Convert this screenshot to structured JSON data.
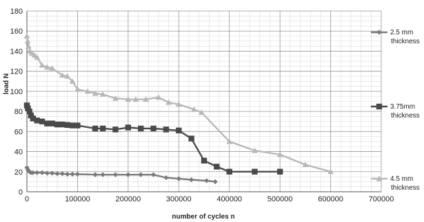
{
  "chart_data": {
    "type": "line",
    "title": "",
    "xlabel": "number of cycles n",
    "ylabel": "load N",
    "xlim": [
      0,
      700000
    ],
    "ylim": [
      0,
      180
    ],
    "x_ticks": [
      0,
      100000,
      200000,
      300000,
      400000,
      500000,
      600000,
      700000
    ],
    "y_ticks": [
      0,
      20,
      40,
      60,
      80,
      100,
      120,
      140,
      160,
      180
    ],
    "minor_x_step": 20000,
    "minor_y_step": 5,
    "grid": true,
    "legend_position": "right",
    "series": [
      {
        "name": "2.5 mm thickness",
        "label_lines": [
          "2.5 mm",
          "thickness"
        ],
        "marker": "diamond",
        "color": "#7a7a7a",
        "x": [
          0,
          2000,
          5000,
          8000,
          12000,
          20000,
          30000,
          40000,
          50000,
          60000,
          70000,
          80000,
          90000,
          100000,
          135000,
          150000,
          175000,
          200000,
          225000,
          250000,
          275000,
          300000,
          325000,
          355000,
          372000
        ],
        "y": [
          24,
          22,
          20,
          19,
          19,
          19,
          19,
          18.5,
          18.5,
          18,
          18,
          17.5,
          17.5,
          17.5,
          17,
          17,
          17,
          17,
          17,
          17,
          14,
          13,
          12,
          11,
          10
        ]
      },
      {
        "name": "3.75mm thickness",
        "label_lines": [
          "3.75mm",
          "thickness"
        ],
        "marker": "square",
        "color": "#4a4a4a",
        "x": [
          0,
          2000,
          5000,
          8000,
          12000,
          20000,
          30000,
          40000,
          50000,
          60000,
          70000,
          80000,
          90000,
          100000,
          135000,
          150000,
          175000,
          200000,
          225000,
          250000,
          275000,
          300000,
          325000,
          350000,
          375000,
          400000,
          450000,
          500000
        ],
        "y": [
          86,
          83,
          80,
          76,
          73,
          71,
          70,
          68,
          68,
          67,
          67,
          66.5,
          66,
          66,
          63,
          63,
          62,
          64,
          63,
          63,
          62,
          61,
          53,
          31,
          25,
          20,
          20,
          20
        ]
      },
      {
        "name": "4.5 mm thickness",
        "label_lines": [
          "4.5 mm",
          "thickness"
        ],
        "marker": "triangle",
        "color": "#b8b8b8",
        "x": [
          0,
          1500,
          3000,
          6000,
          10000,
          15000,
          20000,
          30000,
          40000,
          50000,
          70000,
          80000,
          90000,
          100000,
          120000,
          135000,
          150000,
          175000,
          200000,
          215000,
          235000,
          260000,
          280000,
          300000,
          330000,
          345000,
          400000,
          450000,
          500000,
          550000,
          600000
        ],
        "y": [
          155,
          150,
          145,
          140,
          138,
          136,
          134,
          126,
          124,
          123,
          116,
          115,
          110,
          102,
          100,
          98,
          97,
          93,
          92,
          92,
          92,
          94,
          89,
          87,
          82,
          79,
          50,
          41,
          37,
          27,
          20
        ]
      }
    ]
  }
}
